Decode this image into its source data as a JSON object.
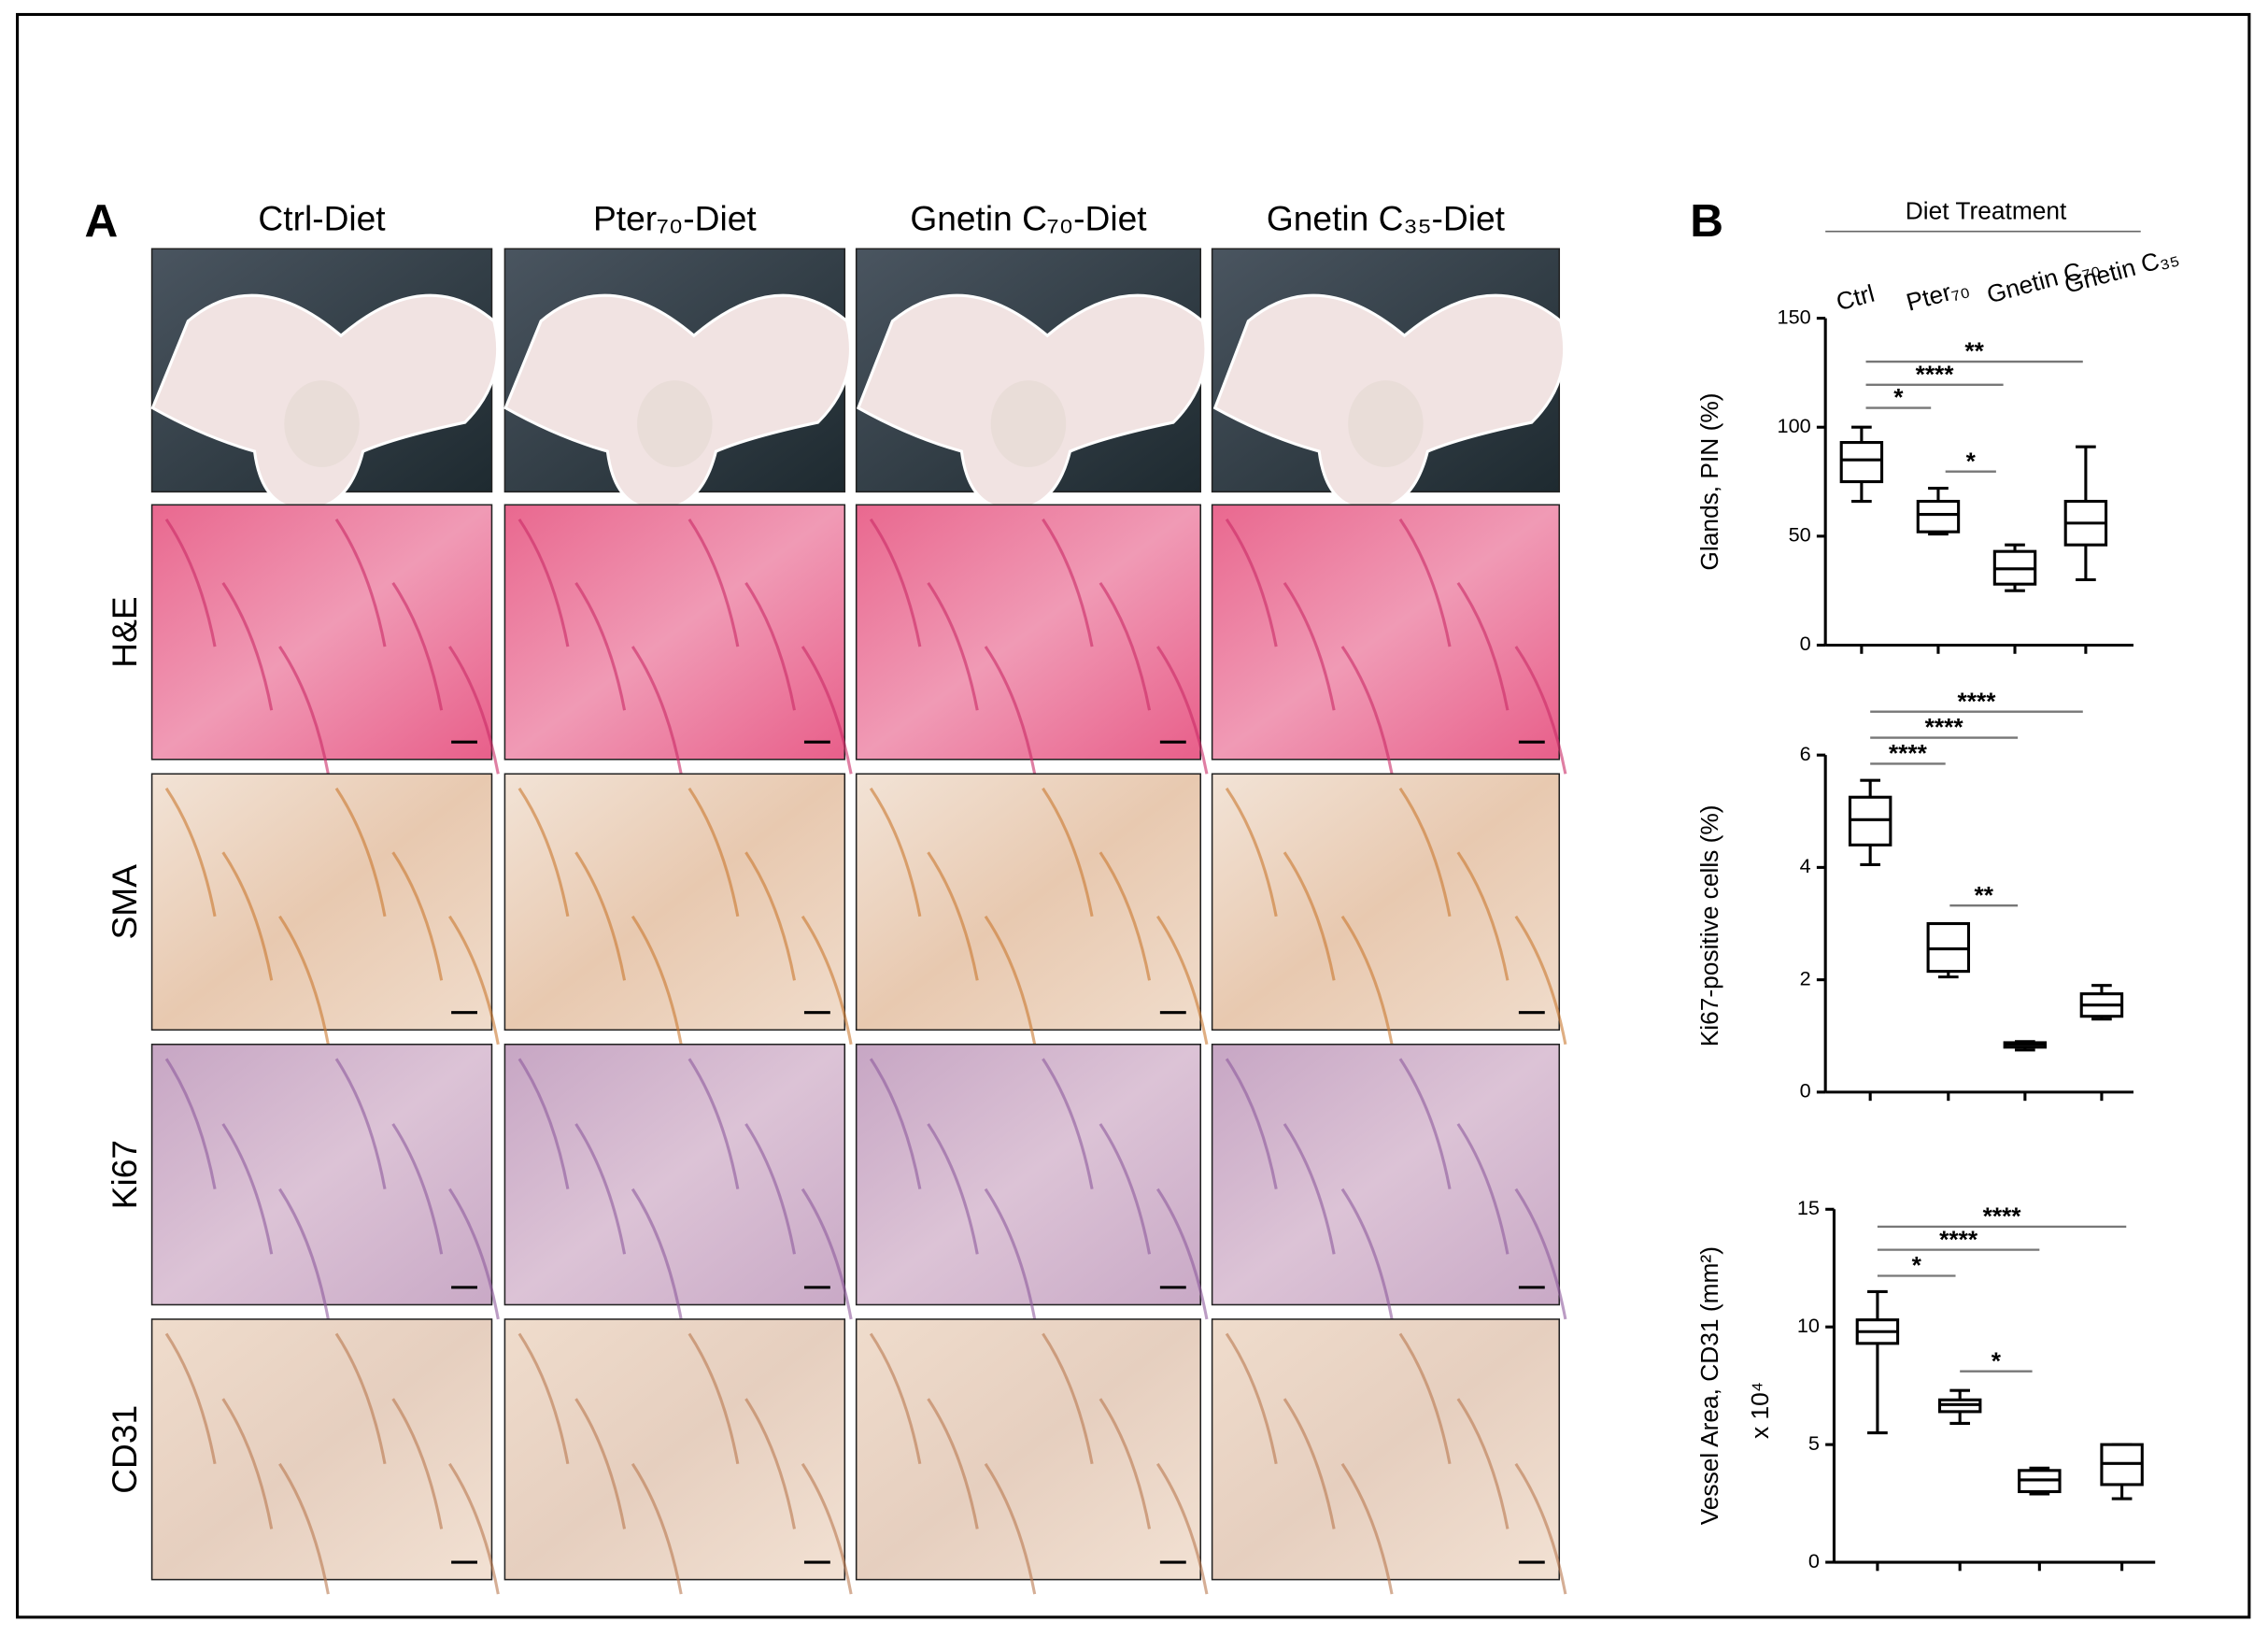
{
  "panel_a": {
    "label": "A",
    "columns": [
      "Ctrl-Diet",
      "Pter₇₀-Diet",
      "Gnetin C₇₀-Diet",
      "Gnetin C₃₅-Diet"
    ],
    "rows": [
      "H&E",
      "SMA",
      "Ki67",
      "CD31"
    ]
  },
  "panel_b": {
    "label": "B"
  },
  "chart_data": [
    {
      "type": "box",
      "x_label": "Diet Treatment",
      "categories": [
        "Ctrl",
        "Pter₇₀",
        "Gnetin C₇₀",
        "Gnetin C₃₅"
      ],
      "y_label": "Glands, PIN (%)",
      "ylim": [
        0,
        150
      ],
      "yticks": [
        0,
        50,
        100,
        150
      ],
      "boxes": [
        {
          "min": 66,
          "q1": 75,
          "median": 85,
          "q3": 93,
          "max": 100
        },
        {
          "min": 51,
          "q1": 52,
          "median": 60,
          "q3": 66,
          "max": 72
        },
        {
          "min": 25,
          "q1": 28,
          "median": 35,
          "q3": 43,
          "max": 46
        },
        {
          "min": 30,
          "q1": 46,
          "median": 56,
          "q3": 66,
          "max": 91
        }
      ],
      "annotations": [
        "**",
        "****",
        "*",
        "*"
      ]
    },
    {
      "type": "box",
      "y_label": "Ki67-positive cells (%)",
      "ylim": [
        0,
        6
      ],
      "yticks": [
        0,
        2,
        4,
        6
      ],
      "boxes": [
        {
          "min": 4.05,
          "q1": 4.4,
          "median": 4.85,
          "q3": 5.25,
          "max": 5.55
        },
        {
          "min": 2.05,
          "q1": 2.15,
          "median": 2.55,
          "q3": 3.0,
          "max": 3.0
        },
        {
          "min": 0.75,
          "q1": 0.8,
          "median": 0.85,
          "q3": 0.88,
          "max": 0.9
        },
        {
          "min": 1.3,
          "q1": 1.35,
          "median": 1.55,
          "q3": 1.75,
          "max": 1.9
        }
      ],
      "annotations": [
        "****",
        "****",
        "****",
        "**"
      ]
    },
    {
      "type": "box",
      "y_label": "Vessel Area, CD31 (mm²)",
      "y_unit": "x 10⁴",
      "ylim": [
        0,
        15
      ],
      "yticks": [
        0,
        5,
        10,
        15
      ],
      "boxes": [
        {
          "min": 5.5,
          "q1": 9.3,
          "median": 9.8,
          "q3": 10.3,
          "max": 11.5
        },
        {
          "min": 5.9,
          "q1": 6.4,
          "median": 6.7,
          "q3": 6.9,
          "max": 7.3
        },
        {
          "min": 2.9,
          "q1": 3.0,
          "median": 3.5,
          "q3": 3.9,
          "max": 4.0
        },
        {
          "min": 2.7,
          "q1": 3.3,
          "median": 4.2,
          "q3": 5.0,
          "max": 5.0
        }
      ],
      "annotations": [
        "****",
        "****",
        "*",
        "*"
      ]
    }
  ]
}
